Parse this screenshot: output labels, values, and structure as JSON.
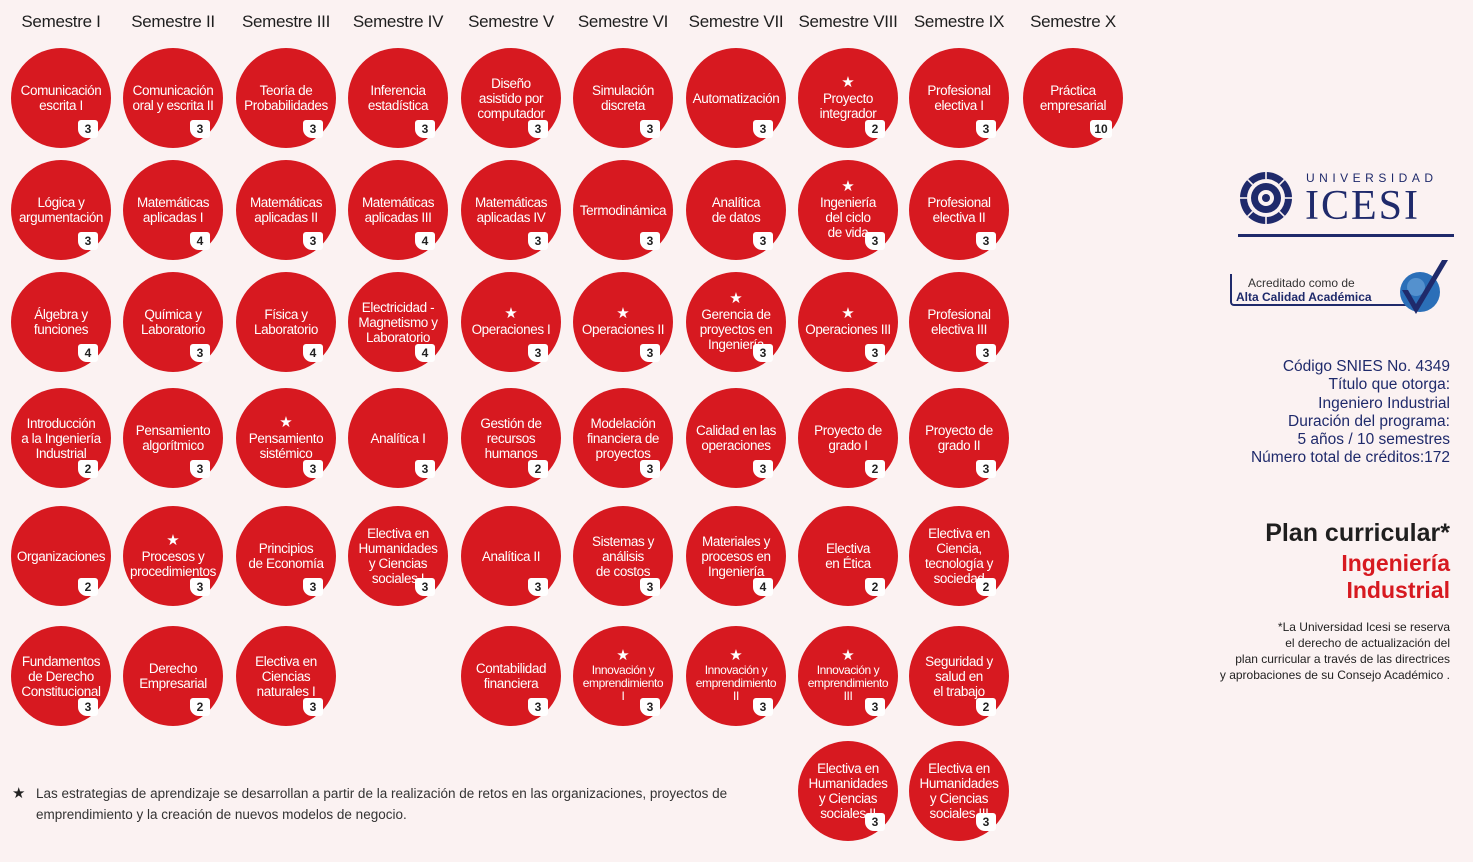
{
  "semesters": [
    {
      "label": "Semestre I",
      "courses": [
        {
          "name": "Comunicación\nescrita I",
          "credits": "3",
          "star": false
        },
        {
          "name": "Lógica y\nargumentación",
          "credits": "3",
          "star": false
        },
        {
          "name": "Álgebra y\nfunciones",
          "credits": "4",
          "star": false
        },
        {
          "name": "Introducción\na la Ingeniería\nIndustrial",
          "credits": "2",
          "star": false
        },
        {
          "name": "Organizaciones",
          "credits": "2",
          "star": false
        },
        {
          "name": "Fundamentos\nde Derecho\nConstitucional",
          "credits": "3",
          "star": false
        }
      ]
    },
    {
      "label": "Semestre II",
      "courses": [
        {
          "name": "Comunicación\noral y escrita II",
          "credits": "3",
          "star": false
        },
        {
          "name": "Matemáticas\naplicadas I",
          "credits": "4",
          "star": false
        },
        {
          "name": "Química y\nLaboratorio",
          "credits": "3",
          "star": false
        },
        {
          "name": "Pensamiento\nalgorítmico",
          "credits": "3",
          "star": false
        },
        {
          "name": "Procesos y\nprocedimientos",
          "credits": "3",
          "star": true
        },
        {
          "name": "Derecho\nEmpresarial",
          "credits": "2",
          "star": false
        }
      ]
    },
    {
      "label": "Semestre III",
      "courses": [
        {
          "name": "Teoría de\nProbabilidades",
          "credits": "3",
          "star": false
        },
        {
          "name": "Matemáticas\naplicadas II",
          "credits": "3",
          "star": false
        },
        {
          "name": "Física y\nLaboratorio",
          "credits": "4",
          "star": false
        },
        {
          "name": "Pensamiento\nsistémico",
          "credits": "3",
          "star": true
        },
        {
          "name": "Principios\nde Economía",
          "credits": "3",
          "star": false
        },
        {
          "name": "Electiva en\nCiencias\nnaturales I",
          "credits": "3",
          "star": false
        }
      ]
    },
    {
      "label": "Semestre IV",
      "courses": [
        {
          "name": "Inferencia\nestadística",
          "credits": "3",
          "star": false
        },
        {
          "name": "Matemáticas\naplicadas  III",
          "credits": "4",
          "star": false
        },
        {
          "name": "Electricidad -\nMagnetismo y\nLaboratorio",
          "credits": "4",
          "star": false
        },
        {
          "name": "Analítica I",
          "credits": "3",
          "star": false
        },
        {
          "name": "Electiva en\nHumanidades\ny Ciencias\nsociales I",
          "credits": "3",
          "star": false
        }
      ]
    },
    {
      "label": "Semestre V",
      "courses": [
        {
          "name": "Diseño\nasistido por\ncomputador",
          "credits": "3",
          "star": false
        },
        {
          "name": "Matemáticas\naplicadas  IV",
          "credits": "3",
          "star": false
        },
        {
          "name": "Operaciones I",
          "credits": "3",
          "star": true
        },
        {
          "name": "Gestión de\nrecursos\nhumanos",
          "credits": "2",
          "star": false
        },
        {
          "name": "Analítica II",
          "credits": "3",
          "star": false
        },
        {
          "name": "Contabilidad\nfinanciera",
          "credits": "3",
          "star": false
        }
      ]
    },
    {
      "label": "Semestre VI",
      "courses": [
        {
          "name": "Simulación\ndiscreta",
          "credits": "3",
          "star": false
        },
        {
          "name": "Termodinámica",
          "credits": "3",
          "star": false
        },
        {
          "name": "Operaciones II",
          "credits": "3",
          "star": true
        },
        {
          "name": "Modelación\nfinanciera de\nproyectos",
          "credits": "3",
          "star": false
        },
        {
          "name": "Sistemas y\nanálisis\nde costos",
          "credits": "3",
          "star": false
        },
        {
          "name": "Innovación y\nemprendimiento\nI",
          "credits": "3",
          "star": true
        }
      ]
    },
    {
      "label": "Semestre VII",
      "courses": [
        {
          "name": "Automatización",
          "credits": "3",
          "star": false
        },
        {
          "name": "Analítica\nde datos",
          "credits": "3",
          "star": false
        },
        {
          "name": "Gerencia de\nproyectos en\nIngeniería",
          "credits": "3",
          "star": true
        },
        {
          "name": "Calidad en las\noperaciones",
          "credits": "3",
          "star": false
        },
        {
          "name": "Materiales y\nprocesos en\nIngeniería",
          "credits": "4",
          "star": false
        },
        {
          "name": "Innovación y\nemprendimiento\nII",
          "credits": "3",
          "star": true
        }
      ]
    },
    {
      "label": "Semestre VIII",
      "courses": [
        {
          "name": "Proyecto\nintegrador",
          "credits": "2",
          "star": true
        },
        {
          "name": "Ingeniería\ndel ciclo\nde vida",
          "credits": "3",
          "star": true
        },
        {
          "name": "Operaciones III",
          "credits": "3",
          "star": true
        },
        {
          "name": "Proyecto de\ngrado I",
          "credits": "2",
          "star": false
        },
        {
          "name": "Electiva\nen Ética",
          "credits": "2",
          "star": false
        },
        {
          "name": "Innovación y\nemprendimiento\nIII",
          "credits": "3",
          "star": true
        },
        {
          "name": "Electiva en\nHumanidades\ny Ciencias\nsociales II",
          "credits": "3",
          "star": false
        }
      ]
    },
    {
      "label": "Semestre IX",
      "courses": [
        {
          "name": "Profesional\nelectiva I",
          "credits": "3",
          "star": false
        },
        {
          "name": "Profesional\nelectiva II",
          "credits": "3",
          "star": false
        },
        {
          "name": "Profesional\nelectiva III",
          "credits": "3",
          "star": false
        },
        {
          "name": "Proyecto de\ngrado II",
          "credits": "3",
          "star": false
        },
        {
          "name": "Electiva en\nCiencia,\ntecnología y\nsociedad",
          "credits": "2",
          "star": false
        },
        {
          "name": "Seguridad y\nsalud en\nel trabajo",
          "credits": "2",
          "star": false
        },
        {
          "name": "Electiva en\nHumanidades\ny Ciencias\nsociales III",
          "credits": "3",
          "star": false
        }
      ]
    },
    {
      "label": "Semestre X",
      "courses": [
        {
          "name": "Práctica\nempresarial",
          "credits": "10",
          "star": false
        }
      ]
    }
  ],
  "footnote": "Las estrategias de aprendizaje se desarrollan a partir de la realización de retos en las organizaciones, proyectos de emprendimiento y la creación de nuevos modelos de negocio.",
  "footnote_icon": "star-icon",
  "logo": {
    "label": "UNIVERSIDAD",
    "name": "ICESI"
  },
  "accreditation": {
    "line1": "Acreditado como de",
    "line2": "Alta Calidad Académica"
  },
  "program_info": [
    "Código SNIES No. 4349",
    "Título que otorga:",
    "Ingeniero Industrial",
    "Duración del programa:",
    "5 años / 10 semestres",
    "Número total de créditos:172"
  ],
  "plan_title": "Plan curricular*",
  "program_name": "Ingeniería\nIndustrial",
  "disclaimer": "*La Universidad Icesi se reserva\nel derecho de actualización del\nplan curricular a través de las directrices\ny aprobaciones de su Consejo Académico .",
  "colors": {
    "circle": "#d71920",
    "navy": "#1f2a6b",
    "background": "#fbf2f2"
  }
}
